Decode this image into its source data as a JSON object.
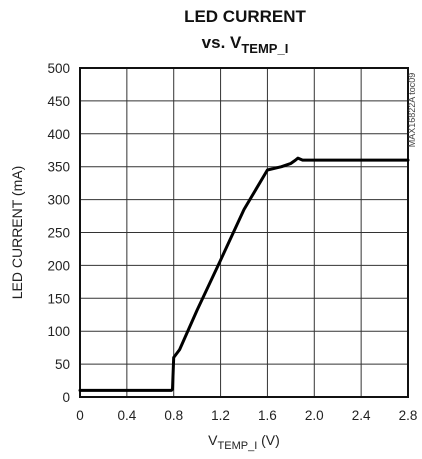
{
  "chart_data": {
    "type": "line",
    "title_line1": "LED CURRENT",
    "title_line2_prefix": "vs. V",
    "title_line2_sub": "TEMP_I",
    "xlabel_prefix": "V",
    "xlabel_sub": "TEMP_I",
    "xlabel_suffix": " (V)",
    "ylabel": "LED CURRENT (mA)",
    "annotation": "MAX16822A toc09",
    "xlim": [
      0,
      2.8
    ],
    "ylim": [
      0,
      500
    ],
    "grid": true,
    "x_ticks": [
      "0",
      "0.4",
      "0.8",
      "1.2",
      "1.6",
      "2.0",
      "2.4",
      "2.8"
    ],
    "y_ticks": [
      "0",
      "50",
      "100",
      "150",
      "200",
      "250",
      "300",
      "350",
      "400",
      "450",
      "500"
    ],
    "series": [
      {
        "color": "#000000",
        "x": [
          0,
          0.78,
          0.79,
          0.8,
          0.85,
          1.0,
          1.2,
          1.4,
          1.6,
          1.72,
          1.8,
          1.84,
          1.86,
          1.9,
          2.0,
          2.4,
          2.8
        ],
        "y": [
          10,
          10,
          12,
          60,
          72,
          132,
          208,
          285,
          345,
          350,
          355,
          360,
          363,
          360,
          360,
          360,
          360
        ]
      }
    ]
  }
}
